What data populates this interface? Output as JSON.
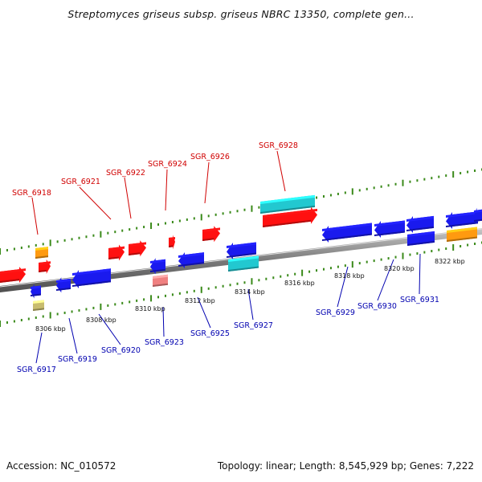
{
  "title": "Streptomyces griseus subsp. griseus NBRC 13350, complete gen...",
  "accession": "Accession: NC_010572",
  "summary": "Topology: linear; Length: 8,545,929 bp; Genes: 7,222",
  "colors": {
    "forward_gene": "#ff1010",
    "reverse_gene": "#1a1aee",
    "rna_gene": "#22c8d0",
    "orange_gene": "#ff9a10",
    "khaki_gene": "#c8bc6e",
    "pink_gene": "#f08080",
    "forward_label": "#d00000",
    "reverse_label": "#0000b0",
    "tick": "#3a8a1a",
    "backbone": "#8a8a8a"
  },
  "ticks": [
    {
      "label": "8306 kbp"
    },
    {
      "label": "8308 kbp"
    },
    {
      "label": "8310 kbp"
    },
    {
      "label": "8312 kbp"
    },
    {
      "label": "8314 kbp"
    },
    {
      "label": "8316 kbp"
    },
    {
      "label": "8318 kbp"
    },
    {
      "label": "8320 kbp"
    },
    {
      "label": "8322 kbp"
    }
  ],
  "forward_labels": [
    {
      "text": "SGR_6918"
    },
    {
      "text": "SGR_6921"
    },
    {
      "text": "SGR_6922"
    },
    {
      "text": "SGR_6924"
    },
    {
      "text": "SGR_6926"
    },
    {
      "text": "SGR_6928"
    }
  ],
  "reverse_labels": [
    {
      "text": "SGR_6917"
    },
    {
      "text": "SGR_6919"
    },
    {
      "text": "SGR_6920"
    },
    {
      "text": "SGR_6923"
    },
    {
      "text": "SGR_6925"
    },
    {
      "text": "SGR_6927"
    },
    {
      "text": "SGR_6929"
    },
    {
      "text": "SGR_6930"
    },
    {
      "text": "SGR_6931"
    }
  ]
}
